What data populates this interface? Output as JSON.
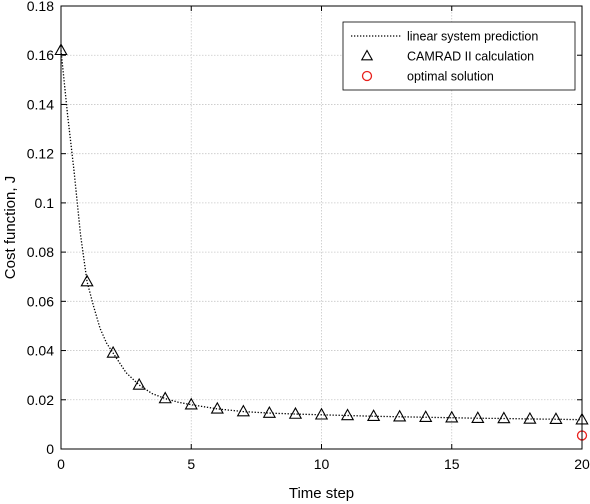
{
  "chart_data": {
    "type": "line",
    "xlabel": "Time step",
    "ylabel": "Cost function, J",
    "xlim": [
      0,
      20
    ],
    "ylim": [
      0,
      0.18
    ],
    "x_ticks": [
      0,
      5,
      10,
      15,
      20
    ],
    "y_ticks": [
      0,
      0.02,
      0.04,
      0.06,
      0.08,
      0.1,
      0.12,
      0.14,
      0.16,
      0.18
    ],
    "x_tick_labels": [
      "0",
      "5",
      "10",
      "15",
      "20"
    ],
    "y_tick_labels": [
      "0",
      "0.02",
      "0.04",
      "0.06",
      "0.08",
      "0.1",
      "0.12",
      "0.14",
      "0.16",
      "0.18"
    ],
    "grid": true,
    "legend_position": "top-right",
    "series": [
      {
        "name": "linear system prediction",
        "style": "dotted-line",
        "color": "#000000",
        "x": [
          0,
          0.25,
          0.5,
          0.75,
          1,
          1.25,
          1.5,
          1.75,
          2,
          2.5,
          3,
          3.5,
          4,
          4.5,
          5,
          6,
          7,
          8,
          9,
          10,
          11,
          12,
          13,
          14,
          15,
          16,
          17,
          18,
          19,
          20
        ],
        "values": [
          0.162,
          0.136,
          0.113,
          0.087,
          0.068,
          0.058,
          0.049,
          0.043,
          0.039,
          0.031,
          0.026,
          0.0225,
          0.0205,
          0.019,
          0.018,
          0.0163,
          0.0152,
          0.0146,
          0.0142,
          0.0139,
          0.0136,
          0.0133,
          0.0131,
          0.0129,
          0.0127,
          0.0125,
          0.0124,
          0.0122,
          0.0121,
          0.0119
        ]
      },
      {
        "name": "CAMRAD II calculation",
        "style": "triangle-markers",
        "color": "#000000",
        "x": [
          0,
          1,
          2,
          3,
          4,
          5,
          6,
          7,
          8,
          9,
          10,
          11,
          12,
          13,
          14,
          15,
          16,
          17,
          18,
          19,
          20
        ],
        "values": [
          0.162,
          0.068,
          0.039,
          0.026,
          0.0205,
          0.018,
          0.0163,
          0.0152,
          0.0146,
          0.0142,
          0.0139,
          0.0136,
          0.0133,
          0.0131,
          0.0129,
          0.0127,
          0.0125,
          0.0124,
          0.0122,
          0.0121,
          0.0119
        ]
      },
      {
        "name": "optimal solution",
        "style": "circle-markers",
        "color": "#e8201c",
        "x": [
          20
        ],
        "values": [
          0.0055
        ]
      }
    ]
  }
}
